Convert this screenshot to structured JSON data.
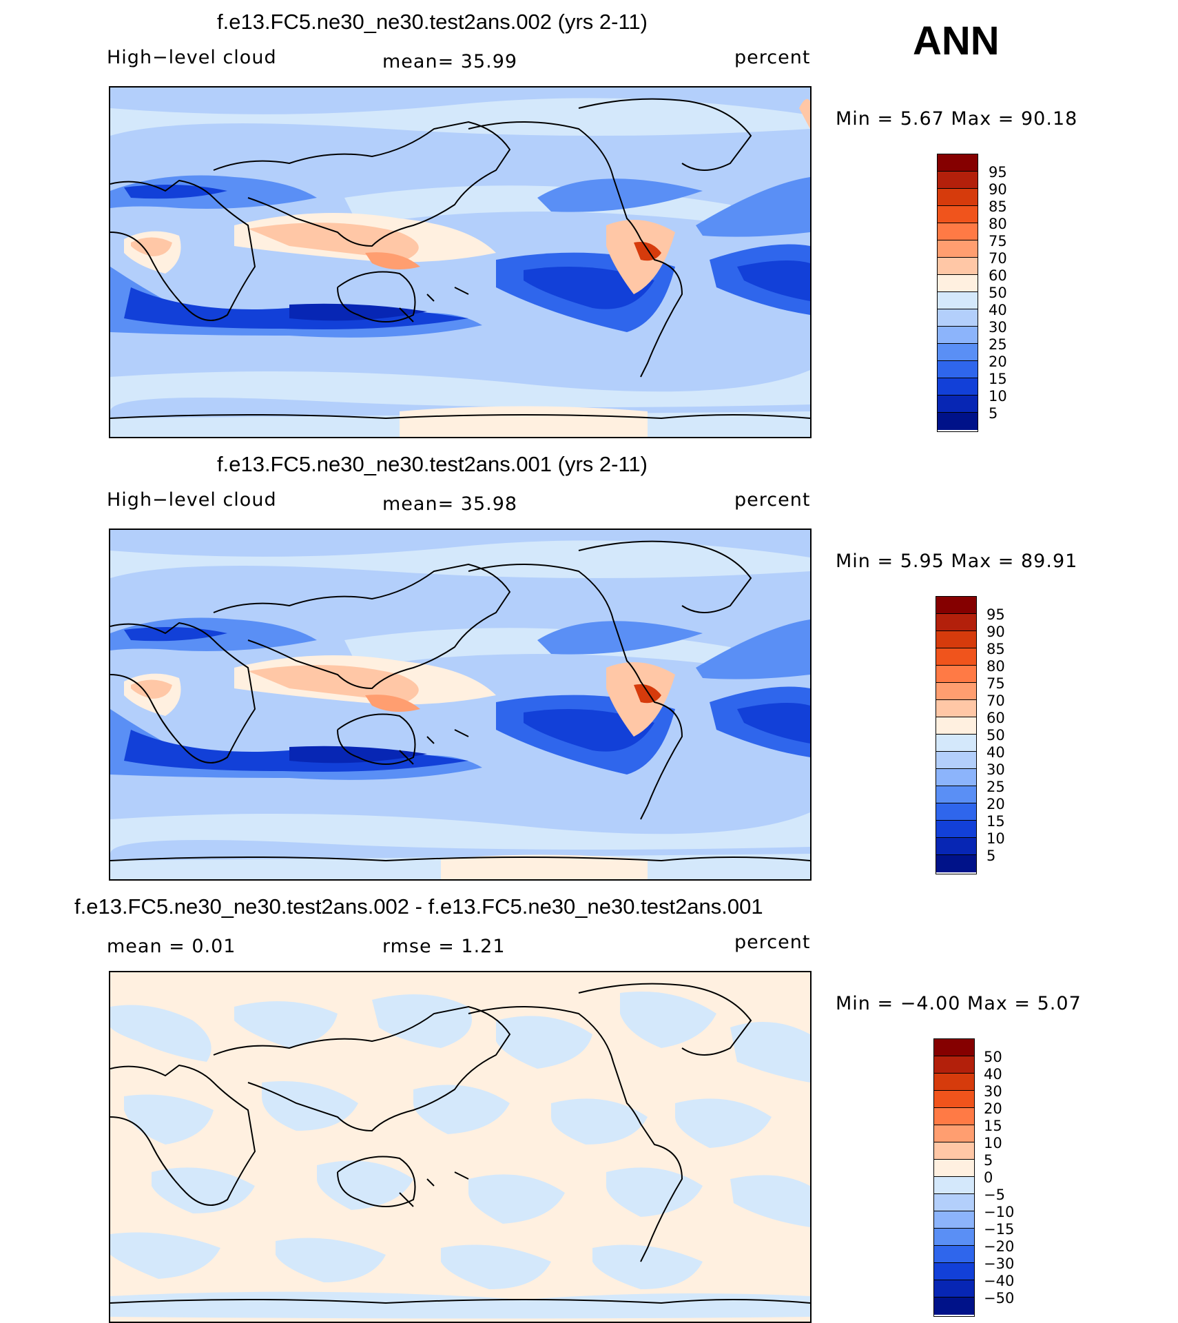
{
  "season": "ANN",
  "panels": [
    {
      "title": "f.e13.FC5.ne30_ne30.test2ans.002 (yrs 2-11)",
      "left_label": "High−level cloud",
      "center_label": "mean=   35.99",
      "right_label": "percent",
      "minmax": "Min =     5.67 Max =    90.18",
      "colorbar_labels": [
        "95",
        "90",
        "85",
        "80",
        "75",
        "70",
        "60",
        "50",
        "40",
        "30",
        "25",
        "20",
        "15",
        "10",
        "5"
      ]
    },
    {
      "title": "f.e13.FC5.ne30_ne30.test2ans.001 (yrs 2-11)",
      "left_label": "High−level cloud",
      "center_label": "mean=   35.98",
      "right_label": "percent",
      "minmax": "Min =     5.95 Max =    89.91",
      "colorbar_labels": [
        "95",
        "90",
        "85",
        "80",
        "75",
        "70",
        "60",
        "50",
        "40",
        "30",
        "25",
        "20",
        "15",
        "10",
        "5"
      ]
    },
    {
      "title": "f.e13.FC5.ne30_ne30.test2ans.002 - f.e13.FC5.ne30_ne30.test2ans.001",
      "left_label": "mean =     0.01",
      "center_label": "rmse =     1.21",
      "right_label": "percent",
      "minmax": "Min =   −4.00 Max =     5.07",
      "colorbar_labels": [
        "50",
        "40",
        "30",
        "20",
        "15",
        "10",
        "5",
        "0",
        "−5",
        "−10",
        "−15",
        "−20",
        "−30",
        "−40",
        "−50"
      ]
    }
  ],
  "colorbar_colors": [
    "#850000",
    "#b3200b",
    "#d63b0c",
    "#f0541c",
    "#ff7a45",
    "#ff9e70",
    "#ffc7a6",
    "#fff0e0",
    "#d4e8fb",
    "#b3cffb",
    "#8cb4fb",
    "#5a8ff5",
    "#2f66ec",
    "#1240d8",
    "#0726b4",
    "#001289"
  ]
}
